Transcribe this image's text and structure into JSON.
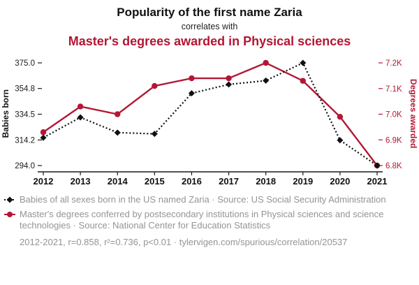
{
  "colors": {
    "accent_red": "#b31735",
    "series_black": "#111111",
    "text_gray": "#949494",
    "axis_black": "#1a1a1a"
  },
  "header": {
    "title": "Popularity of the first name Zaria",
    "subtitle": "correlates with",
    "title2": "Master's degrees awarded in Physical sciences"
  },
  "chart_data": {
    "type": "line",
    "title": "Popularity of the first name Zaria correlates with Master's degrees awarded in Physical sciences",
    "x": [
      "2012",
      "2013",
      "2014",
      "2015",
      "2016",
      "2017",
      "2018",
      "2019",
      "2020",
      "2021"
    ],
    "left_axis": {
      "label": "Babies born",
      "tick_labels": [
        "375.0",
        "354.8",
        "334.5",
        "314.2",
        "294.0"
      ],
      "tick_values": [
        375.0,
        354.8,
        334.5,
        314.2,
        294.0
      ],
      "range": [
        294.0,
        375.0
      ]
    },
    "right_axis": {
      "label": "Degrees awarded",
      "tick_labels": [
        "7.2K",
        "7.1K",
        "7.0K",
        "6.9K",
        "6.8K"
      ],
      "tick_values": [
        7200,
        7100,
        7000,
        6900,
        6800
      ],
      "range": [
        6800,
        7200
      ]
    },
    "series": [
      {
        "name": "Babies of all sexes born in the US named Zaria",
        "axis": "left",
        "marker": "diamond",
        "line_style": "dotted",
        "color": "#111111",
        "values": [
          316,
          332,
          320,
          319,
          351,
          358,
          361,
          375,
          314,
          294
        ]
      },
      {
        "name": "Master's degrees conferred by postsecondary institutions in Physical sciences and science technologies",
        "axis": "right",
        "marker": "circle",
        "line_style": "solid",
        "color": "#b31735",
        "values": [
          6930,
          7030,
          7000,
          7110,
          7140,
          7140,
          7200,
          7130,
          6990,
          6800
        ]
      }
    ],
    "grid": false,
    "legend_position": "below"
  },
  "legend": {
    "items": [
      {
        "label": "Babies of all sexes born in the US named Zaria · Source: US Social Security Administration"
      },
      {
        "label": "Master's degrees conferred by postsecondary institutions in Physical sciences and science technologies · Source: National Center for Education Statistics"
      }
    ]
  },
  "footer": {
    "text": "2012-2021, r=0.858, r²=0.736, p<0.01 · tylervigen.com/spurious/correlation/20537"
  }
}
